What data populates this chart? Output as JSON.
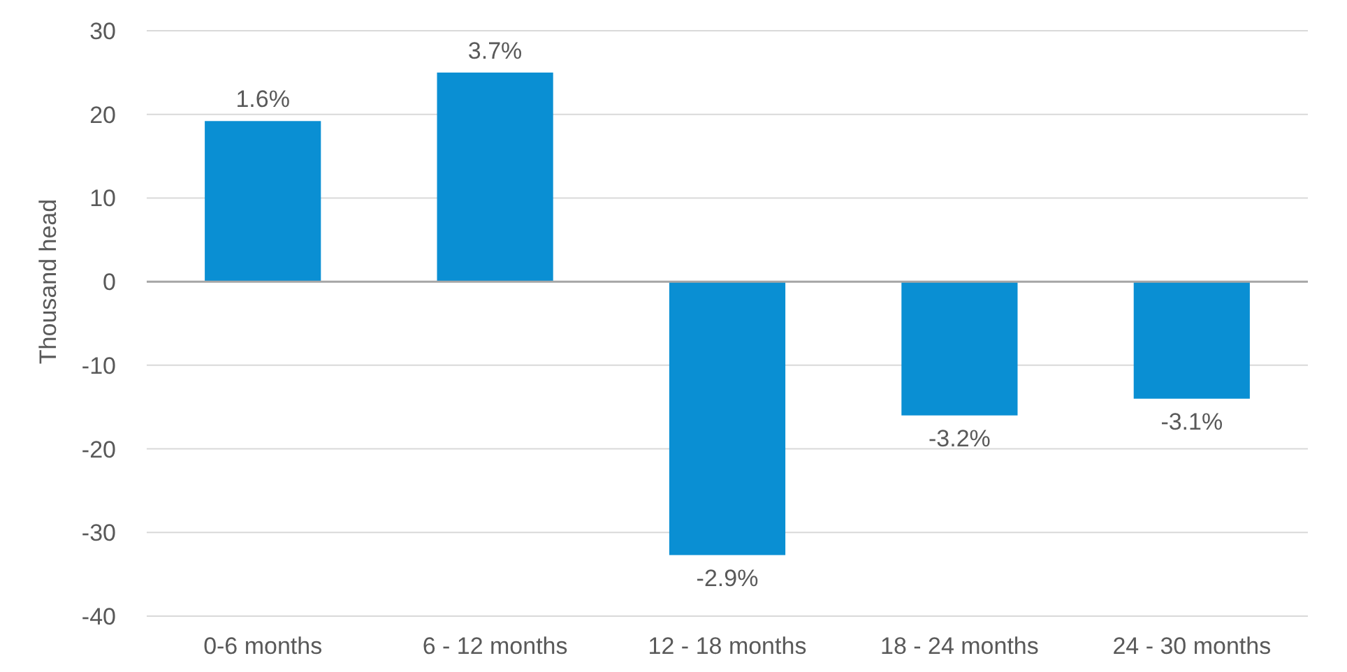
{
  "chart_data": {
    "type": "bar",
    "ylabel": "Thousand head",
    "categories": [
      "0-6 months",
      "6 - 12 months",
      "12 - 18 months",
      "18 - 24 months",
      "24 - 30 months"
    ],
    "values": [
      19.2,
      25,
      -32.7,
      -16,
      -14
    ],
    "annotations": [
      {
        "text": "1.6%",
        "x": "0-6 months",
        "y": 19.2
      },
      {
        "text": "3.7%",
        "x": "6 - 12 months",
        "y": 25
      },
      {
        "text": "-2.9%",
        "x": "12 - 18 months",
        "y": -32.7
      },
      {
        "text": "-3.2%",
        "x": "18 - 24 months",
        "y": -16
      },
      {
        "text": "-3.1%",
        "x": "24 - 30 months",
        "y": -14
      }
    ],
    "color": "#0a8fd3",
    "ylim": [
      -40,
      30
    ],
    "yticks": [
      -40,
      -30,
      -20,
      -10,
      0,
      10,
      20,
      30
    ],
    "grid": "y"
  }
}
